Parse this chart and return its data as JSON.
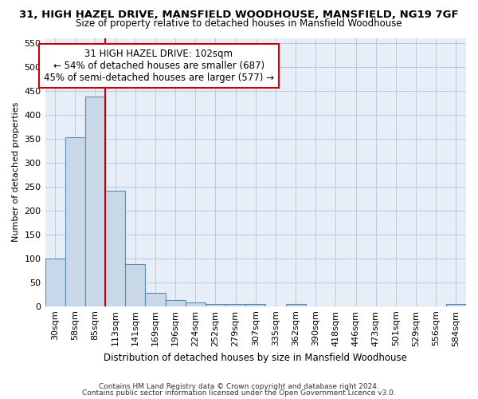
{
  "title1": "31, HIGH HAZEL DRIVE, MANSFIELD WOODHOUSE, MANSFIELD, NG19 7GF",
  "title2": "Size of property relative to detached houses in Mansfield Woodhouse",
  "xlabel": "Distribution of detached houses by size in Mansfield Woodhouse",
  "ylabel": "Number of detached properties",
  "footnote1": "Contains HM Land Registry data © Crown copyright and database right 2024.",
  "footnote2": "Contains public sector information licensed under the Open Government Licence v3.0.",
  "bin_labels": [
    "30sqm",
    "58sqm",
    "85sqm",
    "113sqm",
    "141sqm",
    "169sqm",
    "196sqm",
    "224sqm",
    "252sqm",
    "279sqm",
    "307sqm",
    "335sqm",
    "362sqm",
    "390sqm",
    "418sqm",
    "446sqm",
    "473sqm",
    "501sqm",
    "529sqm",
    "556sqm",
    "584sqm"
  ],
  "bar_heights": [
    100,
    353,
    438,
    241,
    88,
    28,
    13,
    8,
    5,
    5,
    5,
    0,
    5,
    0,
    0,
    0,
    0,
    0,
    0,
    0,
    5
  ],
  "bar_color": "#c8d8e8",
  "bar_edge_color": "#5a8ab0",
  "bar_edge_width": 0.8,
  "grid_color": "#c0c8d8",
  "bg_color": "#e8eef8",
  "annotation_text1": "31 HIGH HAZEL DRIVE: 102sqm",
  "annotation_text2": "← 54% of detached houses are smaller (687)",
  "annotation_text3": "45% of semi-detached houses are larger (577) →",
  "annotation_box_color": "#ffffff",
  "annotation_box_edge": "#cc0000",
  "vline_color": "#cc0000",
  "ylim": [
    0,
    560
  ],
  "yticks": [
    0,
    50,
    100,
    150,
    200,
    250,
    300,
    350,
    400,
    450,
    500,
    550
  ],
  "title1_fontsize": 9.5,
  "title2_fontsize": 8.5,
  "xlabel_fontsize": 8.5,
  "ylabel_fontsize": 8,
  "tick_fontsize": 8,
  "footnote_fontsize": 6.5,
  "annot_fontsize": 8.5
}
